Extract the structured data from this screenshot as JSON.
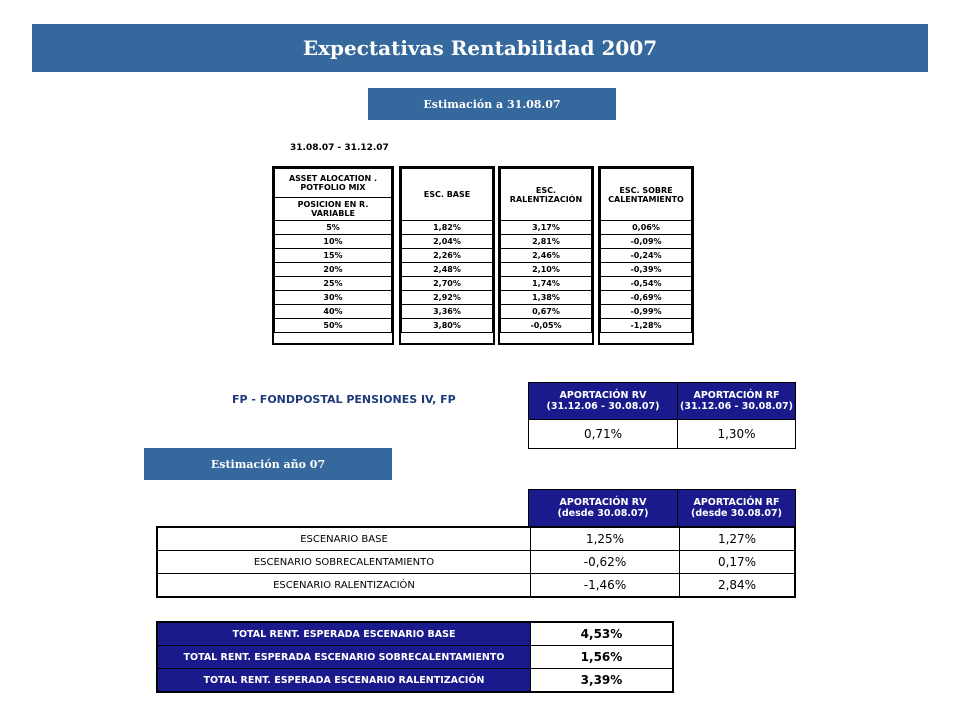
{
  "title": "Expectativas Rentabilidad 2007",
  "estimation_bar": "Estimación a 31.08.07",
  "date_range": "31.08.07 - 31.12.07",
  "allocation": {
    "col_header_line1": "ASSET ALOCATION .",
    "col_header_line2": "POTFOLIO MIX",
    "col_subheader": "POSICION EN R. VARIABLE",
    "base_header": "ESC. BASE",
    "slow_header_line1": "ESC.",
    "slow_header_line2": "RALENTIZACIÓN",
    "over_header_line1": "ESC. SOBRE",
    "over_header_line2": "CALENTAMIENTO",
    "rows": [
      {
        "pos": "5%",
        "base": "1,82%",
        "slow": "3,17%",
        "over": "0,06%"
      },
      {
        "pos": "10%",
        "base": "2,04%",
        "slow": "2,81%",
        "over": "-0,09%"
      },
      {
        "pos": "15%",
        "base": "2,26%",
        "slow": "2,46%",
        "over": "-0,24%"
      },
      {
        "pos": "20%",
        "base": "2,48%",
        "slow": "2,10%",
        "over": "-0,39%"
      },
      {
        "pos": "25%",
        "base": "2,70%",
        "slow": "1,74%",
        "over": "-0,54%"
      },
      {
        "pos": "30%",
        "base": "2,92%",
        "slow": "1,38%",
        "over": "-0,69%"
      },
      {
        "pos": "40%",
        "base": "3,36%",
        "slow": "0,67%",
        "over": "-0,99%"
      },
      {
        "pos": "50%",
        "base": "3,80%",
        "slow": "-0,05%",
        "over": "-1,28%"
      }
    ]
  },
  "fund": {
    "name": "FP - FONDPOSTAL PENSIONES IV, FP",
    "rv_header": "APORTACIÓN RV",
    "rv_period": "(31.12.06 - 30.08.07)",
    "rf_header": "APORTACIÓN RF",
    "rf_period": "(31.12.06 - 30.08.07)",
    "rv_value": "0,71%",
    "rf_value": "1,30%"
  },
  "year_bar": "Estimación año 07",
  "scenarios": {
    "rv_header": "APORTACIÓN RV",
    "rv_period": "(desde 30.08.07)",
    "rf_header": "APORTACIÓN RF",
    "rf_period": "(desde 30.08.07)",
    "rows": [
      {
        "label": "ESCENARIO BASE",
        "rv": "1,25%",
        "rf": "1,27%"
      },
      {
        "label": "ESCENARIO SOBRECALENTAMIENTO",
        "rv": "-0,62%",
        "rf": "0,17%"
      },
      {
        "label": "ESCENARIO RALENTIZACIÓN",
        "rv": "-1,46%",
        "rf": "2,84%"
      }
    ]
  },
  "totals": [
    {
      "label": "TOTAL RENT. ESPERADA ESCENARIO BASE",
      "value": "4,53%"
    },
    {
      "label": "TOTAL RENT. ESPERADA ESCENARIO SOBRECALENTAMIENTO",
      "value": "1,56%"
    },
    {
      "label": "TOTAL RENT. ESPERADA ESCENARIO RALENTIZACIÓN",
      "value": "3,39%"
    }
  ]
}
